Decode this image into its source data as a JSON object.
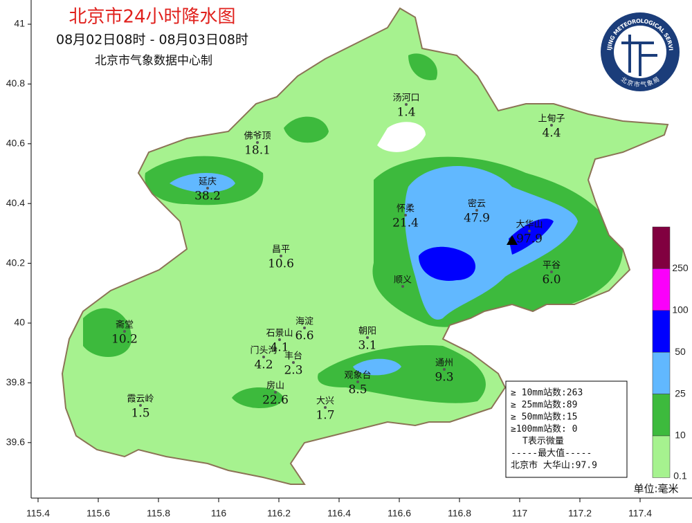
{
  "title": "北京市24小时降水图",
  "subtitle": "08月02日08时 - 08月03日08时",
  "producer": "北京市气象数据中心制",
  "logo": {
    "english": "BEIJING METEOROLOGICAL SERVICE",
    "chinese": "北京市气象局"
  },
  "lat_ticks": [
    41,
    40.8,
    40.6,
    40.4,
    40.2,
    40,
    39.8,
    39.6
  ],
  "lon_ticks": [
    115.4,
    115.6,
    115.8,
    116,
    116.2,
    116.4,
    116.6,
    116.8,
    117,
    117.2,
    117.4
  ],
  "stations": [
    {
      "name": "汤河口",
      "value": 1.4
    },
    {
      "name": "上甸子",
      "value": 4.4
    },
    {
      "name": "佛爷顶",
      "value": 18.1
    },
    {
      "name": "延庆",
      "value": 38.2
    },
    {
      "name": "怀柔",
      "value": 21.4
    },
    {
      "name": "密云",
      "value": 47.9
    },
    {
      "name": "大华山",
      "value": 97.9
    },
    {
      "name": "昌平",
      "value": 10.6
    },
    {
      "name": "平谷",
      "value": 6,
      "value_label": "6.0"
    },
    {
      "name": "顺义"
    },
    {
      "name": "斋堂",
      "value": 10.2
    },
    {
      "name": "海淀",
      "value": 6.6
    },
    {
      "name": "石景山",
      "value": 4.1
    },
    {
      "name": "朝阳",
      "value": 3.1
    },
    {
      "name": "门头沟",
      "value": 4.2
    },
    {
      "name": "丰台",
      "value": 2.3
    },
    {
      "name": "通州",
      "value": 9.3
    },
    {
      "name": "观象台",
      "value": 8.5
    },
    {
      "name": "房山",
      "value": 22.6
    },
    {
      "name": "霞云岭",
      "value": 1.5
    },
    {
      "name": "大兴",
      "value": 1.7
    }
  ],
  "stats": [
    "≥ 10mm站数:263",
    "≥ 25mm站数:89",
    "≥ 50mm站数:15",
    "≥100mm站数: 0",
    "T表示微量",
    "-----最大值-----",
    "北京市 大华山:97.9"
  ],
  "legend": {
    "colors": [
      "#a6f28f",
      "#3dba3d",
      "#61b8ff",
      "#0000fe",
      "#fa00fa",
      "#810040"
    ],
    "bounds": [
      0.1,
      10,
      25,
      50,
      100,
      250
    ]
  },
  "unit": "单位:毫米"
}
